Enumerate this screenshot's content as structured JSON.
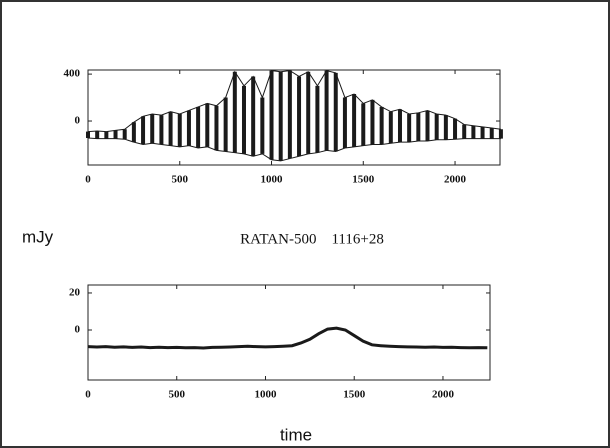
{
  "chart_data": [
    {
      "type": "range",
      "x": [
        0,
        50,
        100,
        150,
        200,
        250,
        300,
        350,
        400,
        450,
        500,
        550,
        600,
        650,
        700,
        750,
        800,
        850,
        900,
        950,
        1000,
        1050,
        1100,
        1150,
        1200,
        1250,
        1300,
        1350,
        1400,
        1450,
        1500,
        1550,
        1600,
        1650,
        1700,
        1750,
        1800,
        1850,
        1900,
        1950,
        2000,
        2050,
        2100,
        2150,
        2200,
        2250
      ],
      "series": [
        {
          "color": "#1a1a1a",
          "values": [
            -90,
            -85,
            -90,
            -80,
            -70,
            -10,
            40,
            60,
            50,
            80,
            60,
            90,
            120,
            150,
            130,
            200,
            420,
            300,
            380,
            200,
            430,
            420,
            430,
            380,
            420,
            300,
            430,
            410,
            200,
            230,
            150,
            180,
            120,
            80,
            100,
            60,
            70,
            90,
            60,
            50,
            20,
            -30,
            -40,
            -50,
            -60,
            -70
          ]
        },
        {
          "color": "#1a1a1a",
          "values": [
            -145,
            -150,
            -150,
            -150,
            -155,
            -180,
            -200,
            -190,
            -200,
            -210,
            -220,
            -210,
            -230,
            -220,
            -250,
            -260,
            -270,
            -280,
            -300,
            -280,
            -330,
            -340,
            -320,
            -300,
            -280,
            -270,
            -250,
            -260,
            -230,
            -220,
            -210,
            -200,
            -200,
            -190,
            -180,
            -180,
            -170,
            -170,
            -160,
            -160,
            -155,
            -150,
            -150,
            -150,
            -150,
            -150
          ]
        }
      ],
      "xlim": [
        0,
        2245
      ],
      "ylim": [
        -375,
        435
      ],
      "xticks": [
        0,
        500,
        1000,
        1500,
        2000
      ],
      "yticks": [
        0,
        400
      ]
    },
    {
      "type": "line",
      "title": "RATAN-500    1116+28",
      "ylabel": "mJy",
      "xlabel": "time",
      "x": [
        0,
        50,
        100,
        150,
        200,
        250,
        300,
        350,
        400,
        450,
        500,
        550,
        600,
        650,
        700,
        750,
        800,
        850,
        900,
        950,
        1000,
        1050,
        1100,
        1150,
        1200,
        1250,
        1300,
        1350,
        1400,
        1450,
        1500,
        1550,
        1600,
        1650,
        1700,
        1750,
        1800,
        1850,
        1900,
        1950,
        2000,
        2050,
        2100,
        2150,
        2200,
        2250
      ],
      "series": [
        {
          "color": "#1a1a1a",
          "values": [
            -9,
            -9.2,
            -9,
            -9.3,
            -9.1,
            -9.4,
            -9.2,
            -9.5,
            -9.3,
            -9.5,
            -9.4,
            -9.6,
            -9.5,
            -9.7,
            -9.4,
            -9.3,
            -9.2,
            -9,
            -8.8,
            -9,
            -9.1,
            -9,
            -8.8,
            -8.5,
            -7,
            -5,
            -2,
            0.5,
            1,
            0,
            -3,
            -6,
            -8,
            -8.5,
            -8.8,
            -9,
            -9.1,
            -9.2,
            -9.3,
            -9.2,
            -9.4,
            -9.3,
            -9.5,
            -9.6,
            -9.5,
            -9.6
          ]
        }
      ],
      "xlim": [
        0,
        2265
      ],
      "ylim": [
        -27,
        24.3
      ],
      "xticks": [
        0,
        500,
        1000,
        1500,
        2000
      ],
      "yticks": [
        0,
        20
      ]
    }
  ]
}
